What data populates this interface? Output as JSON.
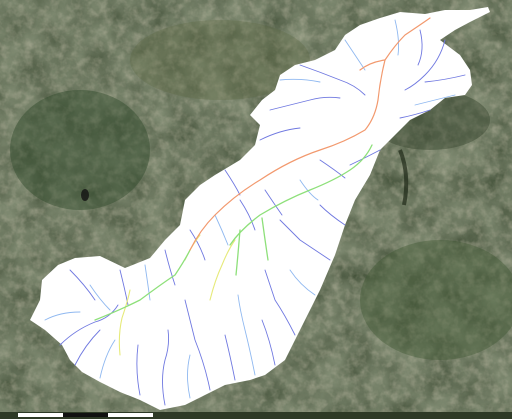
{
  "map": {
    "basemap": "satellite-imagery",
    "overlay": "river-basin-stream-network",
    "basin_fill_color": "#ffffff",
    "stream_colors": {
      "main_stem": "#f2996e",
      "major": "#8ee07a",
      "secondary": "#e6ea7a",
      "tributary_a": "#6f78e0",
      "tributary_b": "#8fb8f0"
    },
    "terrain_colors": [
      "#46583a",
      "#5e6a45",
      "#7d7a5a",
      "#3a4a30",
      "#8b8566"
    ],
    "scale_bar": {
      "colors": [
        "#ffffff",
        "#111111"
      ]
    }
  }
}
